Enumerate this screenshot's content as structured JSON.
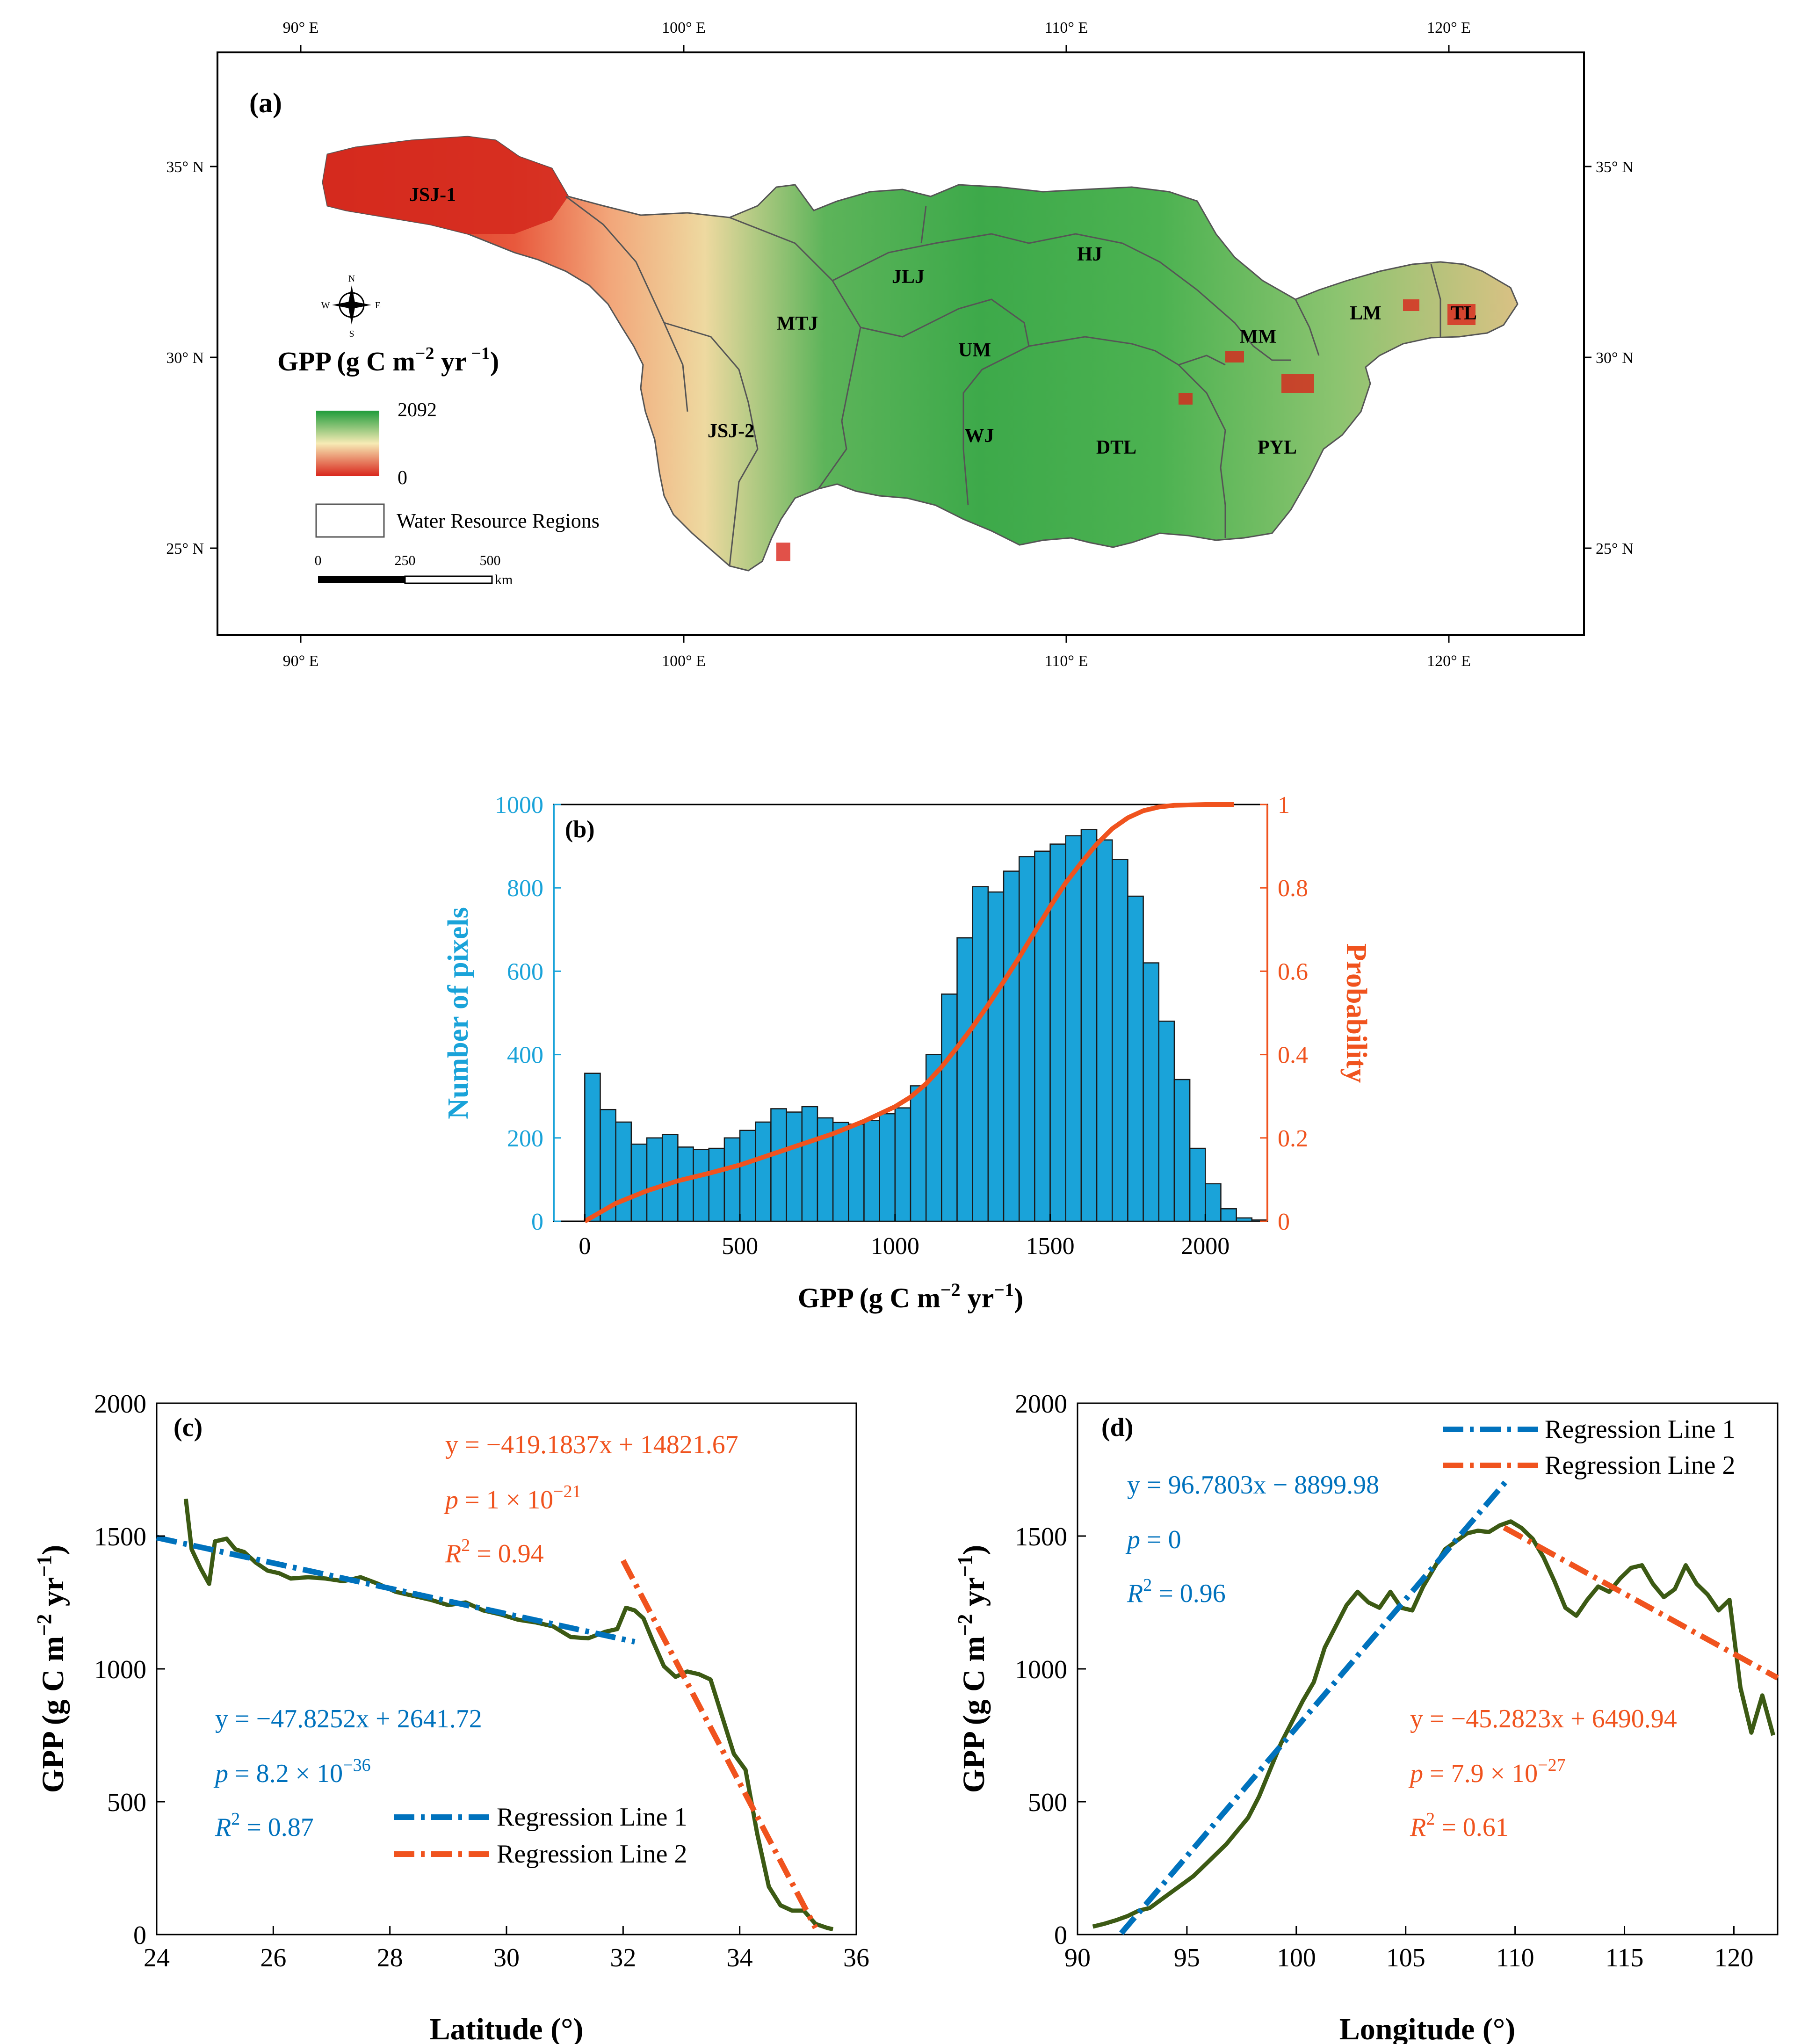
{
  "colors": {
    "blue": "#0072BD",
    "orange": "#F0531E",
    "bar": "#1AA3D9",
    "curve": "#3C5A14",
    "boundary": "#555555",
    "red": "#D9261C",
    "green": "#1F9C3A",
    "cream": "#F7EBB5"
  },
  "map": {
    "panel": "(a)",
    "top_ticks": [
      "90° E",
      "100° E",
      "110° E",
      "120° E"
    ],
    "bottom_ticks": [
      "90° E",
      "100° E",
      "110° E",
      "120° E"
    ],
    "left_ticks": [
      "35° N",
      "30° N",
      "25° N"
    ],
    "right_ticks": [
      "35° N",
      "30° N",
      "25° N"
    ],
    "regions": [
      "JSJ-1",
      "JSJ-2",
      "MTJ",
      "JLJ",
      "HJ",
      "UM",
      "WJ",
      "DTL",
      "PYL",
      "MM",
      "LM",
      "TL"
    ],
    "legend": {
      "title_main": "GPP (g C m",
      "title_sup1": "−2",
      "title_mid": " yr",
      "title_sup2": " −1",
      "title_end": ")",
      "max": "2092",
      "min": "0",
      "boundary_label": "Water Resource Regions"
    },
    "compass": {
      "n": "N",
      "s": "S",
      "e": "E",
      "w": "W"
    },
    "scale": {
      "labels": [
        "0",
        "250",
        "500"
      ],
      "unit": "km"
    }
  },
  "chart_data": [
    {
      "type": "bar",
      "panel": "(b)",
      "xlabel_main": "GPP (g C m",
      "xlabel_sup1": "−2",
      "xlabel_mid": " yr",
      "xlabel_sup2": "−1",
      "xlabel_end": ")",
      "ylabel_left": "Number of pixels",
      "ylabel_right": "Probability",
      "xlim": [
        -100,
        2200
      ],
      "ylim_left": [
        0,
        1000
      ],
      "ylim_right": [
        0,
        1
      ],
      "x_ticks": [
        "0",
        "500",
        "1000",
        "1500",
        "2000"
      ],
      "y_ticks_left": [
        "0",
        "200",
        "400",
        "600",
        "800",
        "1000"
      ],
      "y_ticks_right": [
        "0",
        "0.2",
        "0.4",
        "0.6",
        "0.8",
        "1"
      ],
      "bin_width": 50,
      "bin_start": 0,
      "values": [
        355,
        268,
        238,
        185,
        200,
        208,
        178,
        172,
        175,
        200,
        218,
        238,
        270,
        262,
        275,
        248,
        237,
        233,
        242,
        258,
        272,
        325,
        400,
        545,
        680,
        803,
        790,
        840,
        875,
        888,
        905,
        925,
        940,
        915,
        868,
        780,
        620,
        480,
        340,
        175,
        90,
        30,
        8,
        3
      ],
      "cdf": {
        "x": [
          0,
          100,
          200,
          300,
          400,
          500,
          600,
          700,
          800,
          900,
          1000,
          1050,
          1100,
          1150,
          1200,
          1250,
          1300,
          1350,
          1400,
          1450,
          1500,
          1550,
          1600,
          1650,
          1700,
          1750,
          1800,
          1850,
          1900,
          1950,
          2000,
          2092
        ],
        "y": [
          0.0,
          0.043,
          0.073,
          0.097,
          0.115,
          0.135,
          0.16,
          0.185,
          0.21,
          0.24,
          0.275,
          0.298,
          0.33,
          0.37,
          0.417,
          0.466,
          0.519,
          0.575,
          0.633,
          0.694,
          0.755,
          0.812,
          0.86,
          0.905,
          0.942,
          0.968,
          0.985,
          0.994,
          0.998,
          0.999,
          1.0,
          1.0
        ]
      }
    },
    {
      "type": "line",
      "panel": "(c)",
      "xlabel": "Latitude (°)",
      "ylabel_main": "GPP (g C m",
      "ylabel_sup1": "−2",
      "ylabel_mid": " yr",
      "ylabel_sup2": "−1",
      "ylabel_end": ")",
      "xlim": [
        24,
        36
      ],
      "ylim": [
        0,
        2000
      ],
      "x_ticks": [
        "24",
        "26",
        "28",
        "30",
        "32",
        "34",
        "36"
      ],
      "y_ticks": [
        "0",
        "500",
        "1000",
        "1500",
        "2000"
      ],
      "series_gpp": {
        "x": [
          24.5,
          24.6,
          24.75,
          24.9,
          25.0,
          25.2,
          25.35,
          25.5,
          25.7,
          25.9,
          26.1,
          26.3,
          26.6,
          26.9,
          27.2,
          27.5,
          27.8,
          28.1,
          28.4,
          28.7,
          29.0,
          29.3,
          29.6,
          29.9,
          30.2,
          30.5,
          30.8,
          31.1,
          31.4,
          31.7,
          31.9,
          32.05,
          32.2,
          32.35,
          32.5,
          32.7,
          32.9,
          33.1,
          33.3,
          33.5,
          33.7,
          33.9,
          34.1,
          34.3,
          34.5,
          34.7,
          34.9,
          35.1,
          35.3,
          35.5,
          35.6
        ],
        "y": [
          1640,
          1450,
          1380,
          1320,
          1480,
          1490,
          1450,
          1440,
          1400,
          1370,
          1360,
          1340,
          1345,
          1340,
          1330,
          1345,
          1320,
          1290,
          1275,
          1260,
          1240,
          1250,
          1220,
          1205,
          1185,
          1175,
          1160,
          1120,
          1115,
          1140,
          1150,
          1230,
          1220,
          1190,
          1110,
          1010,
          970,
          990,
          980,
          960,
          820,
          680,
          620,
          380,
          180,
          110,
          90,
          90,
          40,
          25,
          20
        ]
      },
      "line1": {
        "name": "Regression Line 1",
        "x": [
          24,
          32.2
        ],
        "y": [
          1494,
          1102
        ]
      },
      "line2": {
        "name": "Regression Line 2",
        "x": [
          32.0,
          35.3
        ],
        "y": [
          1408,
          25
        ]
      },
      "eq1": {
        "y": "y = −47.8252x + 2641.72",
        "p_label": "p",
        "p_text": " = 8.2 × 10",
        "p_exp": "−36",
        "r_label": "R",
        "r_sup": "2",
        "r_text": " = 0.87"
      },
      "eq2": {
        "y": "y = −419.1837x + 14821.67",
        "p_label": "p",
        "p_text": " = 1 × 10",
        "p_exp": "−21",
        "r_label": "R",
        "r_sup": "2",
        "r_text": " = 0.94"
      }
    },
    {
      "type": "line",
      "panel": "(d)",
      "xlabel": "Longitude (°)",
      "ylabel_main": "GPP (g C m",
      "ylabel_sup1": "−2",
      "ylabel_mid": " yr",
      "ylabel_sup2": "−1",
      "ylabel_end": ")",
      "xlim": [
        90,
        122
      ],
      "ylim": [
        0,
        2000
      ],
      "x_ticks": [
        "90",
        "95",
        "100",
        "105",
        "110",
        "115",
        "120"
      ],
      "y_ticks": [
        "0",
        "500",
        "1000",
        "1500",
        "2000"
      ],
      "series_gpp": {
        "x": [
          90.7,
          91.2,
          91.8,
          92.3,
          92.8,
          93.3,
          93.8,
          94.3,
          94.8,
          95.3,
          95.8,
          96.3,
          96.8,
          97.3,
          97.8,
          98.3,
          98.8,
          99.3,
          99.8,
          100.3,
          100.8,
          101.3,
          101.8,
          102.3,
          102.8,
          103.3,
          103.8,
          104.3,
          104.8,
          105.3,
          105.8,
          106.3,
          106.8,
          107.3,
          107.8,
          108.3,
          108.8,
          109.3,
          109.8,
          110.3,
          110.8,
          111.3,
          111.8,
          112.3,
          112.8,
          113.3,
          113.8,
          114.3,
          114.8,
          115.3,
          115.8,
          116.3,
          116.8,
          117.3,
          117.8,
          118.3,
          118.8,
          119.3,
          119.8,
          120.3,
          120.8,
          121.3,
          121.8
        ],
        "y": [
          30,
          40,
          55,
          70,
          90,
          100,
          130,
          160,
          190,
          220,
          260,
          300,
          340,
          390,
          440,
          520,
          620,
          720,
          800,
          880,
          950,
          1080,
          1160,
          1240,
          1290,
          1250,
          1230,
          1290,
          1230,
          1220,
          1310,
          1380,
          1450,
          1480,
          1510,
          1520,
          1515,
          1540,
          1555,
          1530,
          1490,
          1420,
          1330,
          1230,
          1200,
          1260,
          1310,
          1290,
          1340,
          1380,
          1390,
          1320,
          1270,
          1300,
          1390,
          1320,
          1280,
          1220,
          1260,
          930,
          760,
          900,
          750
        ]
      },
      "line1": {
        "name": "Regression Line 1",
        "x": [
          92.0,
          109.6
        ],
        "y": [
          5,
          1707
        ]
      },
      "line2": {
        "name": "Regression Line 2",
        "x": [
          109.5,
          122
        ],
        "y": [
          1532,
          966
        ]
      },
      "eq1": {
        "y": "y = 96.7803x − 8899.98",
        "p_label": "p",
        "p_text": " = 0",
        "r_label": "R",
        "r_sup": "2",
        "r_text": " = 0.96"
      },
      "eq2": {
        "y": "y = −45.2823x + 6490.94",
        "p_label": "p",
        "p_text": " = 7.9 × 10",
        "p_exp": "−27",
        "r_label": "R",
        "r_sup": "2",
        "r_text": " = 0.61"
      }
    }
  ]
}
